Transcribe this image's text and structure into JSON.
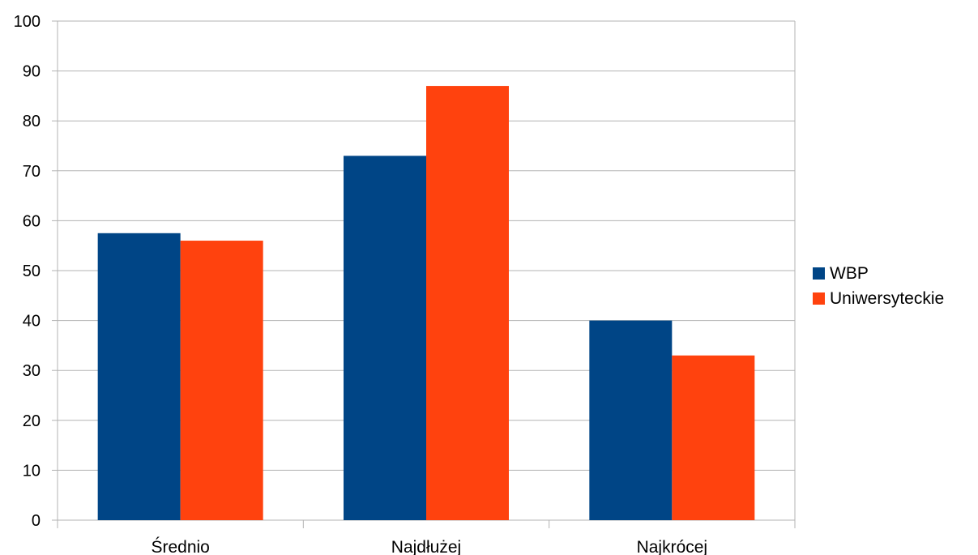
{
  "chart_data": {
    "type": "bar",
    "title": "",
    "xlabel": "",
    "ylabel": "",
    "categories": [
      "Średnio",
      "Najdłużej",
      "Najkrócej"
    ],
    "series": [
      {
        "name": "WBP",
        "color": "#004586",
        "values": [
          57.5,
          73,
          40
        ]
      },
      {
        "name": "Uniwersyteckie",
        "color": "#ff420e",
        "values": [
          56,
          87,
          33
        ]
      }
    ],
    "ylim": [
      0,
      100
    ],
    "yticks": [
      0,
      10,
      20,
      30,
      40,
      50,
      60,
      70,
      80,
      90,
      100
    ],
    "grid": true,
    "legend_position": "right"
  }
}
